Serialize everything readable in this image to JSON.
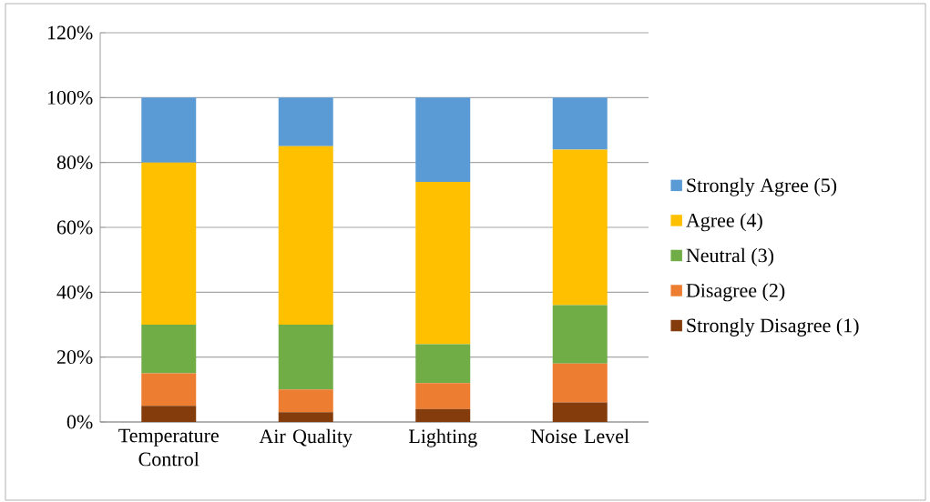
{
  "chart_data": {
    "type": "bar",
    "stacked": true,
    "categories": [
      "Temperature Control",
      "Air Quality",
      "Lighting",
      "Noise Level"
    ],
    "series": [
      {
        "name": "Strongly Disagree (1)",
        "color": "#843c0c",
        "values": [
          5,
          3,
          4,
          6
        ]
      },
      {
        "name": "Disagree (2)",
        "color": "#ed7d31",
        "values": [
          10,
          7,
          8,
          12
        ]
      },
      {
        "name": "Neutral (3)",
        "color": "#70ad47",
        "values": [
          15,
          20,
          12,
          18
        ]
      },
      {
        "name": "Agree (4)",
        "color": "#ffc000",
        "values": [
          50,
          55,
          50,
          48
        ]
      },
      {
        "name": "Strongly Agree (5)",
        "color": "#5b9bd5",
        "values": [
          20,
          15,
          26,
          16
        ]
      }
    ],
    "ylim": [
      0,
      120
    ],
    "yticks": [
      {
        "value": 0,
        "label": "0%"
      },
      {
        "value": 20,
        "label": "20%"
      },
      {
        "value": 40,
        "label": "40%"
      },
      {
        "value": 60,
        "label": "60%"
      },
      {
        "value": 80,
        "label": "80%"
      },
      {
        "value": 100,
        "label": "100%"
      },
      {
        "value": 120,
        "label": "120%"
      }
    ],
    "grid": "y",
    "legend": "right"
  }
}
